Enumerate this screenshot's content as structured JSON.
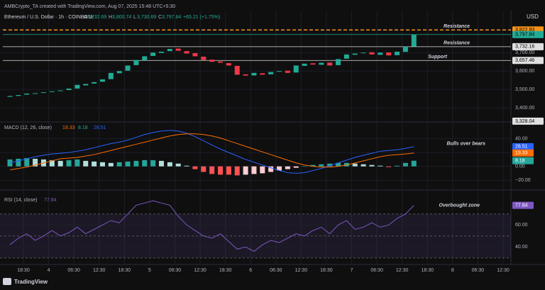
{
  "header": {
    "credit": "AMBCrypto_TA created with TradingView.com, Aug 07, 2025 15:48 UTC+5:30",
    "currency": "USD",
    "symbol": "Ethereum / U.S. Dollar · 1h · COINBASE",
    "ohlc": [
      {
        "key": "O",
        "value": "3,732.69"
      },
      {
        "key": "H",
        "value": "3,800.74"
      },
      {
        "key": "L",
        "value": "3,730.69"
      },
      {
        "key": "C",
        "value": "3,797.84"
      }
    ],
    "change": "+65.21 (+1.75%)"
  },
  "chart_data": [
    {
      "type": "candlestick",
      "up_color": "#22ab94",
      "down_color": "#f23645",
      "ylim": [
        3320,
        3870
      ],
      "yticks": [
        {
          "value": 3400,
          "label": "3,400.00"
        },
        {
          "value": 3500,
          "label": "3,500.00"
        },
        {
          "value": 3600,
          "label": "3,600.00"
        },
        {
          "value": 3700,
          "label": "3,700.00"
        }
      ],
      "open": [
        3460,
        3465,
        3472,
        3478,
        3482,
        3486,
        3492,
        3497,
        3505,
        3522,
        3532,
        3542,
        3556,
        3588,
        3602,
        3632,
        3658,
        3682,
        3698,
        3708,
        3722,
        3708,
        3697,
        3678,
        3662,
        3652,
        3643,
        3628,
        3582,
        3576,
        3588,
        3582,
        3596,
        3602,
        3592,
        3628,
        3642,
        3634,
        3646,
        3632,
        3667,
        3688,
        3697,
        3702,
        3688,
        3701,
        3686,
        3704,
        3732.69
      ],
      "close": [
        3465,
        3470,
        3478,
        3480,
        3485,
        3490,
        3495,
        3505,
        3525,
        3530,
        3540,
        3555,
        3590,
        3600,
        3630,
        3660,
        3680,
        3700,
        3705,
        3720,
        3710,
        3695,
        3680,
        3660,
        3650,
        3645,
        3630,
        3580,
        3575,
        3590,
        3580,
        3595,
        3600,
        3590,
        3630,
        3640,
        3635,
        3645,
        3630,
        3665,
        3690,
        3695,
        3700,
        3690,
        3700,
        3685,
        3705,
        3732,
        3797.84
      ],
      "levels": [
        {
          "value": 3822.93,
          "label": "3,822.93",
          "color": "#f7931a",
          "dashed": true,
          "annotation": "Resistance"
        },
        {
          "value": 3797.84,
          "label": "3,797.84",
          "color": "#22ab94"
        },
        {
          "value": 3732.16,
          "label": "3,732.16",
          "color": "#e0e0e0",
          "annotation": "Resistance"
        },
        {
          "value": 3657.46,
          "label": "3,657.46",
          "color": "#e0e0e0",
          "annotation": "Support"
        },
        {
          "value": 3328.04,
          "label": "3,328.04",
          "color": "#e0e0e0",
          "box_only": true
        }
      ]
    },
    {
      "type": "macd",
      "title": "MACD (12, 26, close)",
      "annotation": "Bulls over bears",
      "ylim": [
        -28,
        56
      ],
      "yticks": [
        {
          "value": -20,
          "label": "−20.00"
        },
        {
          "value": 0,
          "label": "0.00"
        },
        {
          "value": 20,
          "label": "20.00"
        },
        {
          "value": 40,
          "label": "40.00"
        }
      ],
      "series": [
        {
          "name": "Histogram",
          "color": "#26a69a",
          "values": [
            10,
            11,
            12,
            11,
            10,
            9,
            8,
            9,
            10,
            8,
            7,
            6,
            5,
            6,
            7,
            8,
            9,
            9,
            8,
            6,
            4,
            1,
            -4,
            -8,
            -11,
            -12,
            -12,
            -13,
            -12,
            -11,
            -10,
            -8,
            -6,
            -4,
            -2,
            0,
            2,
            3,
            4,
            5,
            5,
            4,
            3,
            2,
            1,
            -1,
            1,
            5,
            8.18
          ]
        },
        {
          "name": "MACD",
          "color": "#2962ff",
          "values": [
            5,
            8,
            11,
            14,
            16,
            18,
            19,
            20,
            22,
            24,
            27,
            30,
            33,
            35,
            38,
            42,
            46,
            49,
            51,
            52,
            51,
            48,
            43,
            37,
            31,
            25,
            20,
            15,
            10,
            6,
            2,
            -2,
            -6,
            -9,
            -10,
            -9,
            -6,
            -3,
            1,
            5,
            9,
            13,
            16,
            19,
            22,
            23,
            24,
            26,
            28.51
          ]
        },
        {
          "name": "Signal",
          "color": "#ff6d00",
          "values": [
            -5,
            -3,
            -1,
            2,
            5,
            8,
            11,
            12,
            13,
            15,
            17,
            20,
            23,
            26,
            29,
            32,
            35,
            38,
            41,
            44,
            46,
            47,
            47,
            46,
            44,
            41,
            37,
            33,
            29,
            25,
            21,
            17,
            13,
            9,
            5,
            2,
            0,
            -1,
            -1,
            0,
            2,
            5,
            8,
            11,
            14,
            16,
            17,
            18,
            19.33
          ]
        }
      ]
    },
    {
      "type": "rsi",
      "title": "RSI (14, close)",
      "annotation": "Overbought zone",
      "color": "#7e57c2",
      "ylim": [
        26,
        86
      ],
      "band": [
        30,
        70
      ],
      "midline": 50,
      "yticks": [
        {
          "value": 40,
          "label": "40.00"
        },
        {
          "value": 60,
          "label": "60.00"
        }
      ],
      "values": [
        42,
        48,
        52,
        46,
        50,
        55,
        50,
        53,
        58,
        52,
        56,
        60,
        64,
        62,
        70,
        78,
        80,
        82,
        80,
        78,
        68,
        60,
        55,
        50,
        48,
        52,
        45,
        38,
        40,
        36,
        42,
        46,
        44,
        48,
        52,
        50,
        55,
        58,
        52,
        60,
        64,
        56,
        58,
        62,
        58,
        60,
        66,
        70,
        77.84
      ],
      "xtick_labels": [
        "18:30",
        "4",
        "06:30",
        "12:30",
        "18:30",
        "5",
        "06:30",
        "12:30",
        "18:30",
        "6",
        "06:30",
        "12:30",
        "18:30",
        "7",
        "06:30",
        "12:30",
        "18:30",
        "8",
        "06:30",
        "12:30"
      ]
    }
  ],
  "footer": {
    "brand": "TradingView"
  }
}
